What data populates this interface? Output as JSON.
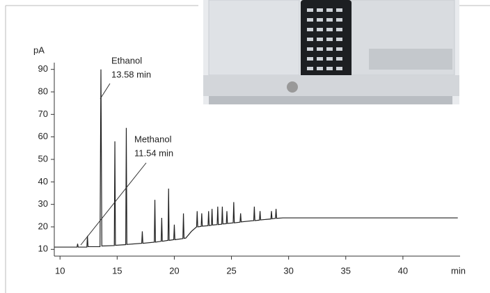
{
  "chart_data": {
    "type": "line",
    "x": [
      9.5,
      11.49,
      11.54,
      11.59,
      12.35,
      12.4,
      12.45,
      13.5,
      13.58,
      13.66,
      14.75,
      14.8,
      14.85,
      15.75,
      15.8,
      15.85,
      17.15,
      17.2,
      17.25,
      18.25,
      18.3,
      18.35,
      18.85,
      18.9,
      18.95,
      19.45,
      19.5,
      19.55,
      19.95,
      20.0,
      20.05,
      20.75,
      20.8,
      20.85,
      21.0,
      21.5,
      21.95,
      22.0,
      22.05,
      22.35,
      22.4,
      22.45,
      22.95,
      23.0,
      23.05,
      23.25,
      23.3,
      23.35,
      23.75,
      23.8,
      23.85,
      24.15,
      24.2,
      24.25,
      24.55,
      24.6,
      24.65,
      25.15,
      25.2,
      25.25,
      25.75,
      25.8,
      25.85,
      26.95,
      27.0,
      27.05,
      27.45,
      27.5,
      27.55,
      28.45,
      28.5,
      28.55,
      28.85,
      28.9,
      28.95,
      29.5,
      35,
      40,
      44.8
    ],
    "values": [
      11,
      11,
      12.5,
      11,
      11,
      16,
      11.2,
      11.2,
      90,
      11.5,
      11.7,
      58,
      11.8,
      12.1,
      64,
      12.2,
      12.7,
      18,
      12.7,
      13.2,
      32,
      13.2,
      13.6,
      24,
      13.6,
      14,
      37,
      14,
      14.3,
      21,
      14.3,
      14.8,
      26,
      14.9,
      15,
      18,
      20,
      27,
      20,
      20.2,
      26,
      20.3,
      20.5,
      27,
      20.6,
      20.7,
      28,
      20.8,
      21,
      29,
      21,
      21.2,
      29,
      21.3,
      21.4,
      27,
      21.5,
      21.8,
      31,
      21.8,
      22.1,
      26,
      22.2,
      22.8,
      29,
      22.8,
      23,
      27,
      23.1,
      23.5,
      27,
      23.6,
      23.8,
      28,
      23.8,
      24,
      24,
      24,
      24
    ],
    "color": "#222222",
    "xlim": [
      9.5,
      45
    ],
    "xticks": [
      10,
      15,
      20,
      25,
      30,
      35,
      40
    ],
    "ylim": [
      7,
      93
    ],
    "yticks": [
      10,
      20,
      30,
      40,
      50,
      60,
      70,
      80,
      90
    ],
    "x_label": "min",
    "y_label": "pA",
    "annotations": [
      {
        "name": "Ethanol",
        "time": "13.58 min"
      },
      {
        "name": "Methanol",
        "time": "11.54 min"
      }
    ]
  }
}
